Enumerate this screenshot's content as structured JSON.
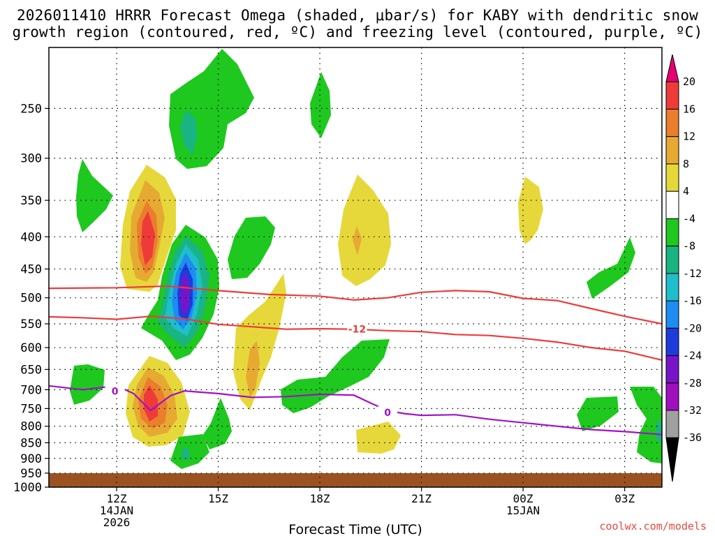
{
  "chart_data": {
    "type": "heatmap",
    "title_line1": "2026011410 HRRR Forecast Omega (shaded, μbar/s) for KABY with dendritic snow",
    "title_line2": "growth region (contoured, red, ºC) and freezing level (contoured, purple, ºC)",
    "xlabel": "Forecast Time (UTC)",
    "credit": "coolwx.com/models",
    "x_range_hours": [
      10.0,
      28.1
    ],
    "y_range_hpa": [
      200,
      1000
    ],
    "x_ticks": [
      {
        "hour": 12,
        "label": "12Z",
        "sub1": "14JAN",
        "sub2": "2026"
      },
      {
        "hour": 15,
        "label": "15Z",
        "sub1": "",
        "sub2": ""
      },
      {
        "hour": 18,
        "label": "18Z",
        "sub1": "",
        "sub2": ""
      },
      {
        "hour": 21,
        "label": "21Z",
        "sub1": "",
        "sub2": ""
      },
      {
        "hour": 24,
        "label": "00Z",
        "sub1": "15JAN",
        "sub2": ""
      },
      {
        "hour": 27,
        "label": "03Z",
        "sub1": "",
        "sub2": ""
      }
    ],
    "y_ticks": [
      250,
      300,
      350,
      400,
      450,
      500,
      550,
      600,
      650,
      700,
      750,
      800,
      850,
      900,
      950,
      1000
    ],
    "colorbar": {
      "labels": [
        "20",
        "16",
        "12",
        "8",
        "4",
        "-4",
        "-8",
        "-12",
        "-16",
        "-20",
        "-24",
        "-28",
        "-32",
        "-36"
      ],
      "colors": [
        "#e60073",
        "#ef3a3a",
        "#ea7e2c",
        "#e6aa32",
        "#e6d83a",
        "#ffffff",
        "#1ec81e",
        "#19b482",
        "#1ebecd",
        "#1e8cf0",
        "#1e3cdc",
        "#7814c8",
        "#a00fbe",
        "#a0a0a0",
        "#000000"
      ]
    },
    "series": [
      {
        "name": "-12C isotherm (upper)",
        "color": "#ee3b3b",
        "points": [
          [
            10.0,
            483
          ],
          [
            12.0,
            482
          ],
          [
            13.5,
            479
          ],
          [
            15.0,
            487
          ],
          [
            16.5,
            494
          ],
          [
            18.0,
            497
          ],
          [
            19.0,
            504
          ],
          [
            20.0,
            500
          ],
          [
            21.0,
            490
          ],
          [
            22.0,
            487
          ],
          [
            23.0,
            489
          ],
          [
            24.0,
            501
          ],
          [
            25.0,
            505
          ],
          [
            26.0,
            520
          ],
          [
            27.0,
            535
          ],
          [
            28.1,
            550
          ]
        ]
      },
      {
        "name": "-12C isotherm (lower)",
        "color": "#ee3b3b",
        "label": "-12",
        "label_at": [
          19.1,
          561
        ],
        "points": [
          [
            10.0,
            536
          ],
          [
            11.0,
            538
          ],
          [
            12.0,
            541
          ],
          [
            13.0,
            535
          ],
          [
            14.0,
            540
          ],
          [
            15.0,
            551
          ],
          [
            16.0,
            556
          ],
          [
            17.0,
            561
          ],
          [
            18.0,
            560
          ],
          [
            19.0,
            561
          ],
          [
            20.0,
            564
          ],
          [
            21.0,
            566
          ],
          [
            22.0,
            572
          ],
          [
            23.0,
            574
          ],
          [
            24.0,
            580
          ],
          [
            25.0,
            588
          ],
          [
            26.0,
            600
          ],
          [
            27.0,
            608
          ],
          [
            28.1,
            628
          ]
        ]
      },
      {
        "name": "0C freezing level",
        "color": "#a011c8",
        "label": "0",
        "label_points": [
          [
            11.95,
            704
          ],
          [
            20.0,
            761
          ]
        ],
        "points": [
          [
            10.0,
            690
          ],
          [
            11.0,
            700
          ],
          [
            12.0,
            690
          ],
          [
            12.5,
            710
          ],
          [
            13.0,
            755
          ],
          [
            13.6,
            715
          ],
          [
            14.0,
            703
          ],
          [
            15.0,
            710
          ],
          [
            16.0,
            720
          ],
          [
            17.0,
            718
          ],
          [
            18.0,
            712
          ],
          [
            19.0,
            714
          ],
          [
            19.5,
            735
          ],
          [
            20.0,
            756
          ],
          [
            20.5,
            764
          ],
          [
            21.0,
            769
          ],
          [
            22.0,
            767
          ],
          [
            23.0,
            780
          ],
          [
            24.0,
            790
          ],
          [
            25.0,
            800
          ],
          [
            26.0,
            810
          ],
          [
            27.0,
            816
          ],
          [
            28.1,
            825
          ]
        ]
      }
    ],
    "shaded_blobs": [
      {
        "omega_range": "-8 to -4",
        "center_hour": 11.0,
        "center_hpa": 395
      },
      {
        "omega_range": "4 to 8 (peak >16)",
        "center_hour": 12.8,
        "center_hpa": 420
      },
      {
        "omega_range": "-8 to -4 (peak -12)",
        "center_hour": 14.3,
        "center_hpa": 260
      },
      {
        "omega_range": "-8 to -28",
        "center_hour": 14.0,
        "center_hpa": 520
      },
      {
        "omega_range": "4 to 20",
        "center_hour": 12.9,
        "center_hpa": 760
      },
      {
        "omega_range": "4 to 8",
        "center_hour": 19.0,
        "center_hpa": 420
      },
      {
        "omega_range": "4 to 8",
        "center_hour": 16.2,
        "center_hpa": 650
      },
      {
        "omega_range": "-8 to -4",
        "center_hour": 18.5,
        "center_hpa": 740
      },
      {
        "omega_range": "4 to 8",
        "center_hour": 24.1,
        "center_hpa": 380
      }
    ]
  }
}
